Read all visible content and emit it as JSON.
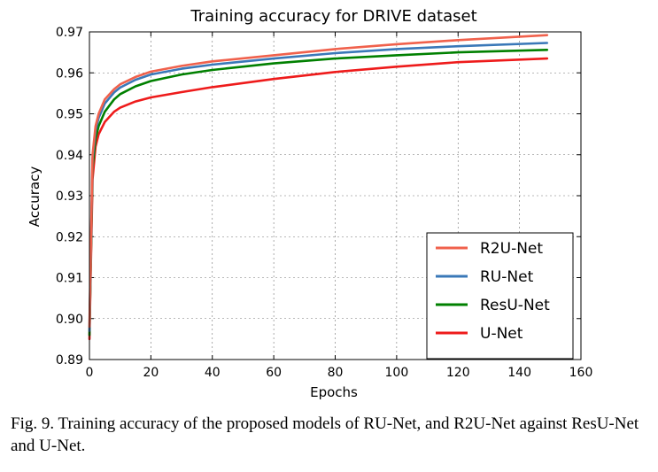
{
  "chart_data": {
    "type": "line",
    "title": "Training accuracy for DRIVE dataset",
    "xlabel": "Epochs",
    "ylabel": "Accuracy",
    "xlim": [
      0,
      160
    ],
    "ylim": [
      0.89,
      0.97
    ],
    "xticks": [
      "0",
      "20",
      "40",
      "60",
      "80",
      "100",
      "120",
      "140",
      "160"
    ],
    "yticks": [
      "0.89",
      "0.90",
      "0.91",
      "0.92",
      "0.93",
      "0.94",
      "0.95",
      "0.96",
      "0.97"
    ],
    "grid": true,
    "legend_position": "lower-right",
    "x": [
      0,
      1,
      2,
      3,
      5,
      8,
      10,
      15,
      20,
      30,
      40,
      60,
      80,
      100,
      120,
      149
    ],
    "series": [
      {
        "name": "R2U-Net",
        "color": "#f0614c",
        "values": [
          0.898,
          0.94,
          0.947,
          0.95,
          0.9535,
          0.956,
          0.9572,
          0.959,
          0.9603,
          0.9617,
          0.9628,
          0.9643,
          0.9658,
          0.967,
          0.968,
          0.9692
        ]
      },
      {
        "name": "RU-Net",
        "color": "#3a78b8",
        "values": [
          0.897,
          0.939,
          0.946,
          0.949,
          0.9525,
          0.9552,
          0.9564,
          0.9583,
          0.9596,
          0.961,
          0.962,
          0.9635,
          0.9648,
          0.9658,
          0.9665,
          0.9673
        ]
      },
      {
        "name": "ResU-Net",
        "color": "#008000",
        "values": [
          0.896,
          0.937,
          0.944,
          0.947,
          0.9505,
          0.9535,
          0.9548,
          0.9567,
          0.958,
          0.9596,
          0.9607,
          0.9623,
          0.9635,
          0.9643,
          0.965,
          0.9656
        ]
      },
      {
        "name": "U-Net",
        "color": "#ee1b1b",
        "values": [
          0.895,
          0.934,
          0.942,
          0.945,
          0.948,
          0.9505,
          0.9515,
          0.953,
          0.954,
          0.9553,
          0.9565,
          0.9585,
          0.9602,
          0.9615,
          0.9626,
          0.9635
        ]
      }
    ]
  },
  "caption": "Fig. 9. Training accuracy of the proposed models of RU-Net, and R2U-Net against ResU-Net and U-Net."
}
